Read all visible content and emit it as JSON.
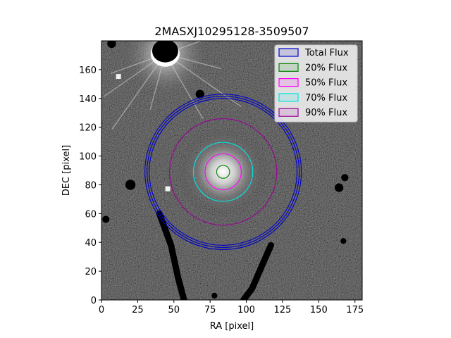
{
  "chart_data": {
    "type": "image",
    "title": "2MASXJ10295128-3509507",
    "xlabel": "RA [pixel]",
    "ylabel": "DEC [pixel]",
    "xlim": [
      0,
      180
    ],
    "ylim": [
      0,
      180
    ],
    "xticks": [
      0,
      25,
      50,
      75,
      100,
      125,
      150,
      175
    ],
    "yticks": [
      0,
      20,
      40,
      60,
      80,
      100,
      120,
      140,
      160
    ],
    "colormap": "gray",
    "galaxy_center": [
      84,
      89
    ],
    "bright_star": [
      44,
      171
    ],
    "legend_position": "upper-right",
    "apertures": [
      {
        "name": "Total Flux",
        "color": "#0000cc",
        "center": [
          84,
          89
        ],
        "radii": [
          51,
          52.5,
          54
        ]
      },
      {
        "name": "20% Flux",
        "color": "#008000",
        "center": [
          84,
          89
        ],
        "radii": [
          4.5
        ]
      },
      {
        "name": "50% Flux",
        "color": "#ff00ff",
        "center": [
          84,
          89
        ],
        "radii": [
          12.5
        ]
      },
      {
        "name": "70% Flux",
        "color": "#00e5e5",
        "center": [
          84,
          89
        ],
        "radii": [
          20.5
        ]
      },
      {
        "name": "90% Flux",
        "color": "#990099",
        "center": [
          84,
          89
        ],
        "radii": [
          37
        ]
      }
    ]
  }
}
